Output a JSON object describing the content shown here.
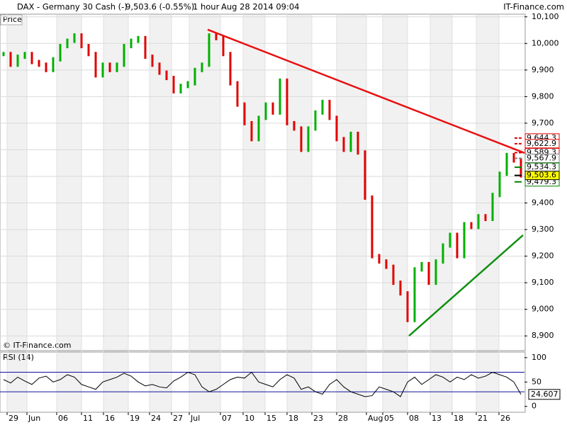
{
  "header": {
    "symbol": "DAX - Germany 30 Cash (-)",
    "quote": "9,503.6 (-0.55%)",
    "interval": "1 hour",
    "timestamp": "Aug 28 2014 09:04",
    "brand": "IT-Finance.com"
  },
  "chart_data": [
    {
      "type": "price-bars",
      "label": "Price",
      "watermark": "© IT-Finance.com",
      "up_color": "#00b000",
      "down_color": "#e00000",
      "x": [
        0,
        1,
        2,
        3,
        4,
        5,
        6,
        7,
        8,
        9,
        10,
        11,
        12,
        13,
        14,
        15,
        16,
        17,
        18,
        19,
        20,
        21,
        22,
        23,
        24,
        25,
        26,
        27,
        28,
        29,
        30,
        31,
        32,
        33,
        34,
        35,
        36,
        37,
        38,
        39,
        40,
        41,
        42,
        43,
        44,
        45,
        46,
        47,
        48,
        49,
        50,
        51,
        52,
        53,
        54,
        55,
        56,
        57,
        58,
        59,
        60,
        61,
        62,
        63,
        64,
        65,
        66,
        67,
        68,
        69,
        70,
        71,
        72,
        73
      ],
      "values": [
        9960,
        9920,
        9950,
        9960,
        9930,
        9920,
        9900,
        9940,
        9990,
        10010,
        10030,
        9990,
        9960,
        9880,
        9920,
        9900,
        9920,
        9990,
        10010,
        10020,
        9950,
        9920,
        9890,
        9870,
        9820,
        9840,
        9850,
        9900,
        9920,
        10030,
        10020,
        9960,
        9850,
        9770,
        9700,
        9640,
        9720,
        9770,
        9740,
        9860,
        9700,
        9680,
        9600,
        9680,
        9740,
        9780,
        9720,
        9640,
        9600,
        9660,
        9590,
        9420,
        9200,
        9180,
        9160,
        9100,
        9060,
        8960,
        9150,
        9170,
        9100,
        9180,
        9240,
        9280,
        9200,
        9320,
        9310,
        9350,
        9340,
        9430,
        9510,
        9580,
        9560,
        9503.6
      ],
      "xlim": [
        -0.5,
        73.5
      ],
      "xticks": [
        {
          "value": 0.5,
          "label": "29"
        },
        {
          "value": 3.3,
          "label": "Jun"
        },
        {
          "value": 7.5,
          "label": "06"
        },
        {
          "value": 11,
          "label": "11"
        },
        {
          "value": 14.1,
          "label": "16"
        },
        {
          "value": 17.6,
          "label": "19"
        },
        {
          "value": 20.6,
          "label": "24"
        },
        {
          "value": 23.7,
          "label": "27"
        },
        {
          "value": 26.2,
          "label": "Jul"
        },
        {
          "value": 30.6,
          "label": "07"
        },
        {
          "value": 33.8,
          "label": "10"
        },
        {
          "value": 36.9,
          "label": "15"
        },
        {
          "value": 40,
          "label": "18"
        },
        {
          "value": 43.5,
          "label": "23"
        },
        {
          "value": 47,
          "label": "28"
        },
        {
          "value": 51.2,
          "label": "Aug"
        },
        {
          "value": 53.5,
          "label": "05"
        },
        {
          "value": 57,
          "label": "08"
        },
        {
          "value": 60.2,
          "label": "13"
        },
        {
          "value": 63.3,
          "label": "18"
        },
        {
          "value": 66.7,
          "label": "21"
        },
        {
          "value": 69.9,
          "label": "26"
        }
      ],
      "ylim": [
        8850,
        10110
      ],
      "yticks": [
        {
          "value": 8900,
          "label": "8,900"
        },
        {
          "value": 9000,
          "label": "9,000"
        },
        {
          "value": 9100,
          "label": "9,100"
        },
        {
          "value": 9200,
          "label": "9,200"
        },
        {
          "value": 9300,
          "label": "9,300"
        },
        {
          "value": 9400,
          "label": "9,400"
        },
        {
          "value": 9500,
          "label": "9,500"
        },
        {
          "value": 9600,
          "label": "9,600"
        },
        {
          "value": 9700,
          "label": "9,700"
        },
        {
          "value": 9800,
          "label": "9,800"
        },
        {
          "value": 9900,
          "label": "9,900"
        },
        {
          "value": 10000,
          "label": "10,000"
        },
        {
          "value": 10100,
          "label": "10,100"
        }
      ],
      "trendlines": [
        {
          "x": [
            28.8,
            73.5
          ],
          "y": [
            10052,
            9588
          ],
          "color": "#e81010"
        },
        {
          "x": [
            57.2,
            73.3
          ],
          "y": [
            8900,
            9279
          ],
          "color": "#109010"
        }
      ],
      "levels": [
        {
          "value": 9644.3,
          "label": "9,644.3",
          "color": "#e00000"
        },
        {
          "value": 9622.9,
          "label": "9,622.9",
          "color": "#e00000"
        },
        {
          "value": 9589.3,
          "label": "9,589.3",
          "color": "#e00000"
        },
        {
          "value": 9567.9,
          "label": "9,567.9",
          "color": "#808080"
        },
        {
          "value": 9534.3,
          "label": "9,534.3",
          "color": "#008000"
        },
        {
          "value": 9479.3,
          "label": "9,479.3",
          "color": "#008000"
        },
        {
          "value": 9503.6,
          "label": "9,503.6",
          "color": "#ffff00"
        }
      ]
    },
    {
      "type": "line",
      "label": "RSI (14)",
      "color": "#000000",
      "x": [
        0,
        1,
        2,
        3,
        4,
        5,
        6,
        7,
        8,
        9,
        10,
        11,
        12,
        13,
        14,
        15,
        16,
        17,
        18,
        19,
        20,
        21,
        22,
        23,
        24,
        25,
        26,
        27,
        28,
        29,
        30,
        31,
        32,
        33,
        34,
        35,
        36,
        37,
        38,
        39,
        40,
        41,
        42,
        43,
        44,
        45,
        46,
        47,
        48,
        49,
        50,
        51,
        52,
        53,
        54,
        55,
        56,
        57,
        58,
        59,
        60,
        61,
        62,
        63,
        64,
        65,
        66,
        67,
        68,
        69,
        70,
        71,
        72,
        73
      ],
      "values": [
        55,
        48,
        60,
        52,
        45,
        58,
        62,
        50,
        55,
        65,
        60,
        45,
        40,
        35,
        50,
        55,
        60,
        68,
        62,
        50,
        42,
        45,
        40,
        38,
        52,
        60,
        70,
        65,
        40,
        30,
        35,
        45,
        55,
        60,
        58,
        70,
        50,
        45,
        40,
        55,
        65,
        58,
        35,
        40,
        30,
        25,
        45,
        55,
        40,
        30,
        25,
        20,
        22,
        40,
        35,
        30,
        20,
        50,
        60,
        45,
        55,
        65,
        60,
        50,
        60,
        55,
        65,
        58,
        62,
        70,
        65,
        60,
        50,
        24.607
      ],
      "xlim": [
        -0.5,
        73.5
      ],
      "ylim": [
        -12,
        110
      ],
      "yticks": [
        100,
        50,
        0
      ],
      "bands": [
        70,
        30
      ],
      "band_color": "#1010a0",
      "last_label": "24.607"
    }
  ]
}
